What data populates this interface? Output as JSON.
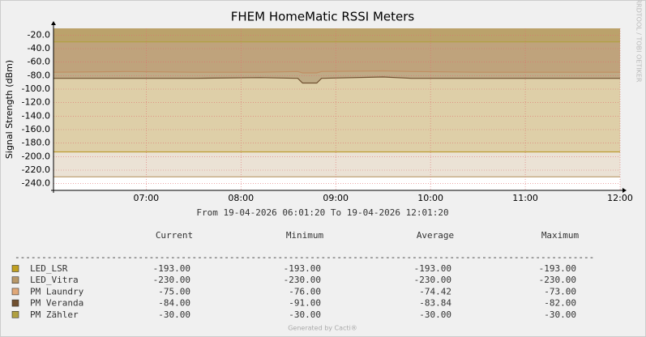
{
  "chart_data": {
    "type": "area",
    "title": "FHEM HomeMatic RSSI Meters",
    "y_label": "Signal Strength (dBm)",
    "time_range": "From 19-04-2026 06:01:20 To 19-04-2026 12:01:20",
    "side_text": "RRDTOOL / TOBI OETIKER",
    "footer": "Generated by Cacti®",
    "separator": "------------------------------------------------------------------------------------------------------------",
    "legend_columns": [
      "Current",
      "Minimum",
      "Average",
      "Maximum"
    ],
    "xlim": [
      6.0222,
      12.0
    ],
    "xticks": [
      {
        "value": 7,
        "label": "07:00"
      },
      {
        "value": 8,
        "label": "08:00"
      },
      {
        "value": 9,
        "label": "09:00"
      },
      {
        "value": 10,
        "label": "10:00"
      },
      {
        "value": 11,
        "label": "11:00"
      },
      {
        "value": 12,
        "label": "12:00"
      }
    ],
    "ylim": [
      -250,
      -10
    ],
    "yticks": [
      {
        "value": -20,
        "label": "-20.0"
      },
      {
        "value": -40,
        "label": "-40.0"
      },
      {
        "value": -60,
        "label": "-60.0"
      },
      {
        "value": -80,
        "label": "-80.0"
      },
      {
        "value": -100,
        "label": "-100.0"
      },
      {
        "value": -120,
        "label": "-120.0"
      },
      {
        "value": -140,
        "label": "-140.0"
      },
      {
        "value": -160,
        "label": "-160.0"
      },
      {
        "value": -180,
        "label": "-180.0"
      },
      {
        "value": -200,
        "label": "-200.0"
      },
      {
        "value": -220,
        "label": "-220.0"
      },
      {
        "value": -240,
        "label": "-240.0"
      }
    ],
    "grid": true,
    "series": [
      {
        "name": "LED_LSR",
        "color": "#c0a020",
        "x": [
          6.0222,
          12.0
        ],
        "values": [
          -193,
          -193
        ],
        "stats": [
          "-193.00",
          "-193.00",
          "-193.00",
          "-193.00"
        ]
      },
      {
        "name": "LED_Vitra",
        "color": "#b89868",
        "x": [
          6.0222,
          12.0
        ],
        "values": [
          -230,
          -230
        ],
        "stats": [
          "-230.00",
          "-230.00",
          "-230.00",
          "-230.00"
        ]
      },
      {
        "name": "PM Laundry",
        "color": "#e0a878",
        "x": [
          6.0222,
          6.8,
          7.5,
          8.2,
          8.6,
          8.65,
          8.8,
          8.85,
          9.5,
          9.8,
          10.5,
          11.2,
          12.0
        ],
        "values": [
          -75,
          -74,
          -75,
          -75,
          -74,
          -76,
          -76,
          -74,
          -73,
          -74,
          -75,
          -75,
          -75
        ],
        "stats": [
          "-75.00",
          "-76.00",
          "-74.42",
          "-73.00"
        ]
      },
      {
        "name": "PM Veranda",
        "color": "#705030",
        "x": [
          6.0222,
          6.8,
          7.5,
          8.2,
          8.6,
          8.65,
          8.8,
          8.85,
          9.5,
          9.8,
          10.5,
          11.2,
          12.0
        ],
        "values": [
          -84,
          -84,
          -84,
          -83,
          -84,
          -91,
          -91,
          -84,
          -82,
          -84,
          -84,
          -84,
          -84
        ],
        "stats": [
          "-84.00",
          "-91.00",
          "-83.84",
          "-82.00"
        ]
      },
      {
        "name": "PM Zähler",
        "color": "#b0a040",
        "x": [
          6.0222,
          12.0
        ],
        "values": [
          -30,
          -30
        ],
        "stats": [
          "-30.00",
          "-30.00",
          "-30.00",
          "-30.00"
        ]
      }
    ]
  }
}
